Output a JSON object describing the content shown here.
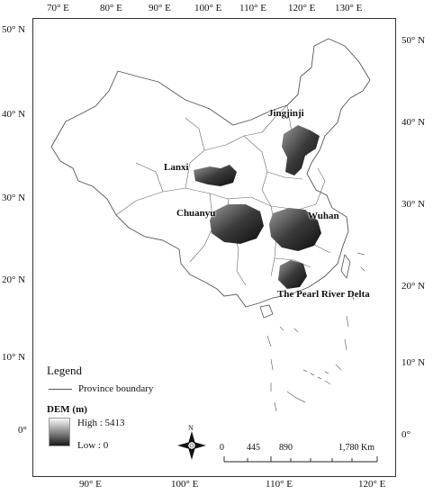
{
  "axes": {
    "top": [
      "70° E",
      "80° E",
      "90° E",
      "100° E",
      "110° E",
      "120° E",
      "130° E"
    ],
    "bottom": [
      "90° E",
      "100° E",
      "110° E",
      "120° E"
    ],
    "left": [
      "50° N",
      "40° N",
      "30° N",
      "20° N",
      "10° N",
      "0°"
    ],
    "right": [
      "50° N",
      "40° N",
      "30° N",
      "20° N",
      "10° N",
      "0°"
    ]
  },
  "regions": {
    "jingjinji": "Jingjinji",
    "lanxi": "Lanxi",
    "chuanyu": "Chuanyu",
    "wuhan": "Wuhan",
    "prd": "The Pearl River Delta"
  },
  "legend": {
    "title": "Legend",
    "boundary_label": "Province boundary",
    "dem_title": "DEM (m)",
    "dem_high": "High : 5413",
    "dem_low": "Low : 0"
  },
  "north_arrow": {
    "label": "N"
  },
  "scale_bar": {
    "labels": [
      "0",
      "445",
      "890",
      "1,780 Km"
    ]
  },
  "colors": {
    "boundary": "#555555",
    "dem_high": "#ffffff",
    "dem_low": "#000000"
  }
}
